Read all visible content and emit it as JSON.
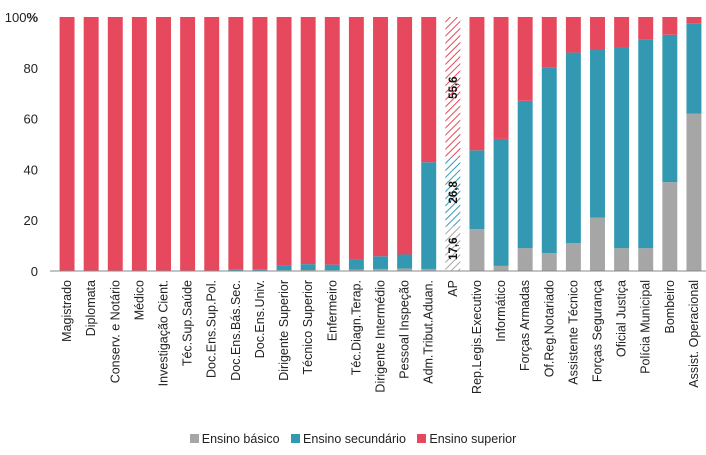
{
  "chart_data": {
    "type": "bar",
    "stacked": true,
    "ylim": [
      0,
      100
    ],
    "yticks": [
      "0",
      "20",
      "40",
      "60",
      "80",
      "100"
    ],
    "y_unit": "%",
    "categories": [
      "Magistrado",
      "Diplomata",
      "Conserv. e Notário",
      "Médico",
      "Investigação Cient.",
      "Téc.Sup.Saúde",
      "Doc.Ens.Sup.Pol.",
      "Doc.Ens.Bás.Sec.",
      "Doc.Ens.Univ.",
      "Dirigente Superior",
      "Técnico Superior",
      "Enfermeiro",
      "Téc.Diagn.Terap.",
      "Dirigente Intermédio",
      "Pessoal Inspeção",
      "Adm.Tribut.Aduan.",
      "AP",
      "Rep.Legis.Executivo",
      "Informático",
      "Forças Armadas",
      "Of.Reg.Notariado",
      "Assistente Técnico",
      "Forças Segurança",
      "Oficial Justiça",
      "Polícia Municipal",
      "Bombeiro",
      "Assist. Operacional"
    ],
    "series": [
      {
        "name": "Ensino básico",
        "color": "#a6a6a6",
        "values": [
          0,
          0,
          0,
          0,
          0,
          0,
          0,
          0,
          0.2,
          0.3,
          0.4,
          0.3,
          0.5,
          0.8,
          1,
          0.8,
          17.6,
          16.5,
          2,
          9,
          7,
          11,
          21,
          9,
          9,
          35,
          62
        ]
      },
      {
        "name": "Ensino secundário",
        "color": "#3399b3",
        "values": [
          0,
          0,
          0,
          0,
          0,
          0,
          0.2,
          0.5,
          0.5,
          1.7,
          2.3,
          2.2,
          4,
          5,
          5.5,
          42,
          26.8,
          31,
          50,
          58,
          73,
          75,
          66,
          79,
          82,
          58,
          35.5
        ]
      },
      {
        "name": "Ensino superior",
        "color": "#e6495d",
        "values": [
          100,
          100,
          100,
          100,
          100,
          100,
          99.8,
          99.5,
          99.3,
          98,
          97.3,
          97.5,
          95.5,
          94.2,
          93.5,
          57.2,
          55.6,
          52.5,
          48,
          33,
          20,
          14,
          13,
          12,
          9,
          7,
          2.5
        ]
      }
    ],
    "highlight": {
      "category": "AP",
      "labels": [
        "17,6",
        "26,8",
        "55,6"
      ]
    },
    "legend": {
      "position": "bottom"
    }
  }
}
